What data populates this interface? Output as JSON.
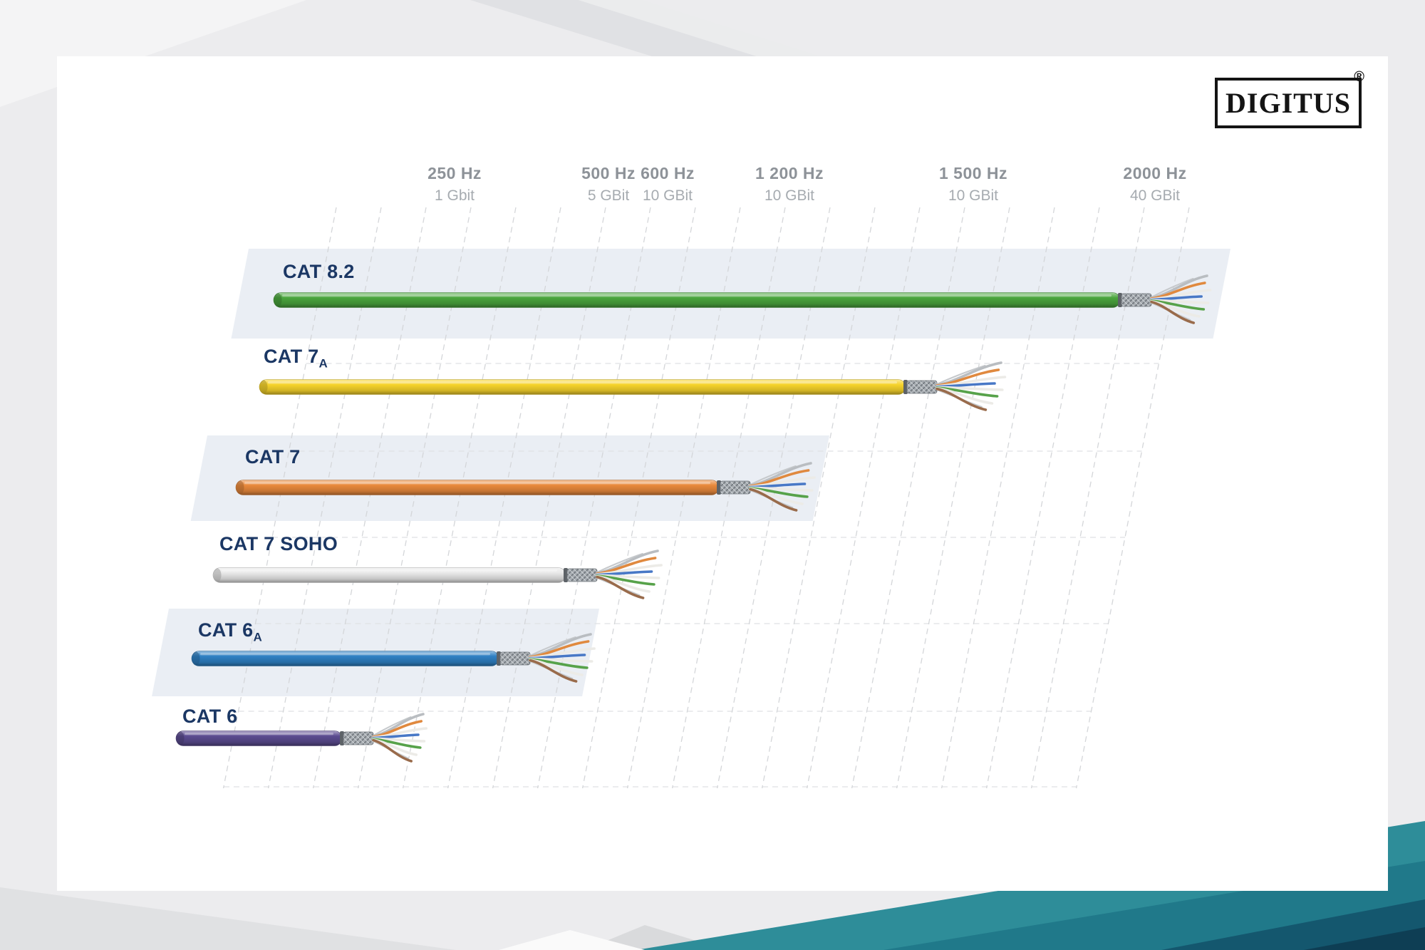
{
  "brand": {
    "logo_text": "DIGITUS",
    "registered_mark": "®"
  },
  "colors": {
    "accent_teal": "#2e8d99",
    "label_navy": "#1b3764",
    "band_fill": "#e8ecf3",
    "grid_line": "#d4d6d9",
    "grid_hline": "#dfe1e3"
  },
  "chart_data": {
    "type": "bar",
    "orientation": "horizontal",
    "description": "Network cable categories compared by supported frequency and data rate",
    "x_axis": {
      "columns": [
        {
          "freq": "250 Hz",
          "freq_value": 250,
          "rate": "1 Gbit"
        },
        {
          "freq": "500 Hz",
          "freq_value": 500,
          "rate": "5 GBit"
        },
        {
          "freq": "600 Hz",
          "freq_value": 600,
          "rate": "10 GBit"
        },
        {
          "freq": "1 200 Hz",
          "freq_value": 1200,
          "rate": "10 GBit"
        },
        {
          "freq": "1 500 Hz",
          "freq_value": 1500,
          "rate": "10 GBit"
        },
        {
          "freq": "2000 Hz",
          "freq_value": 2000,
          "rate": "40 GBit"
        }
      ]
    },
    "series": [
      {
        "label": "CAT 8.2",
        "sub": "",
        "freq_value": 2000,
        "rate": "40 GBit",
        "color": "#4aa53d"
      },
      {
        "label": "CAT 7",
        "sub": "A",
        "freq_value": 1500,
        "rate": "10 GBit",
        "color": "#f6d32b"
      },
      {
        "label": "CAT 7",
        "sub": "",
        "freq_value": 1200,
        "rate": "10 GBit",
        "color": "#e9893c"
      },
      {
        "label": "CAT 7 SOHO",
        "sub": "",
        "freq_value": 600,
        "rate": "10 GBit",
        "color": "#e9e9e9"
      },
      {
        "label": "CAT 6",
        "sub": "A",
        "freq_value": 500,
        "rate": "5 GBit",
        "color": "#2f80c3"
      },
      {
        "label": "CAT 6",
        "sub": "",
        "freq_value": 250,
        "rate": "1 Gbit",
        "color": "#5b4b90"
      }
    ]
  }
}
